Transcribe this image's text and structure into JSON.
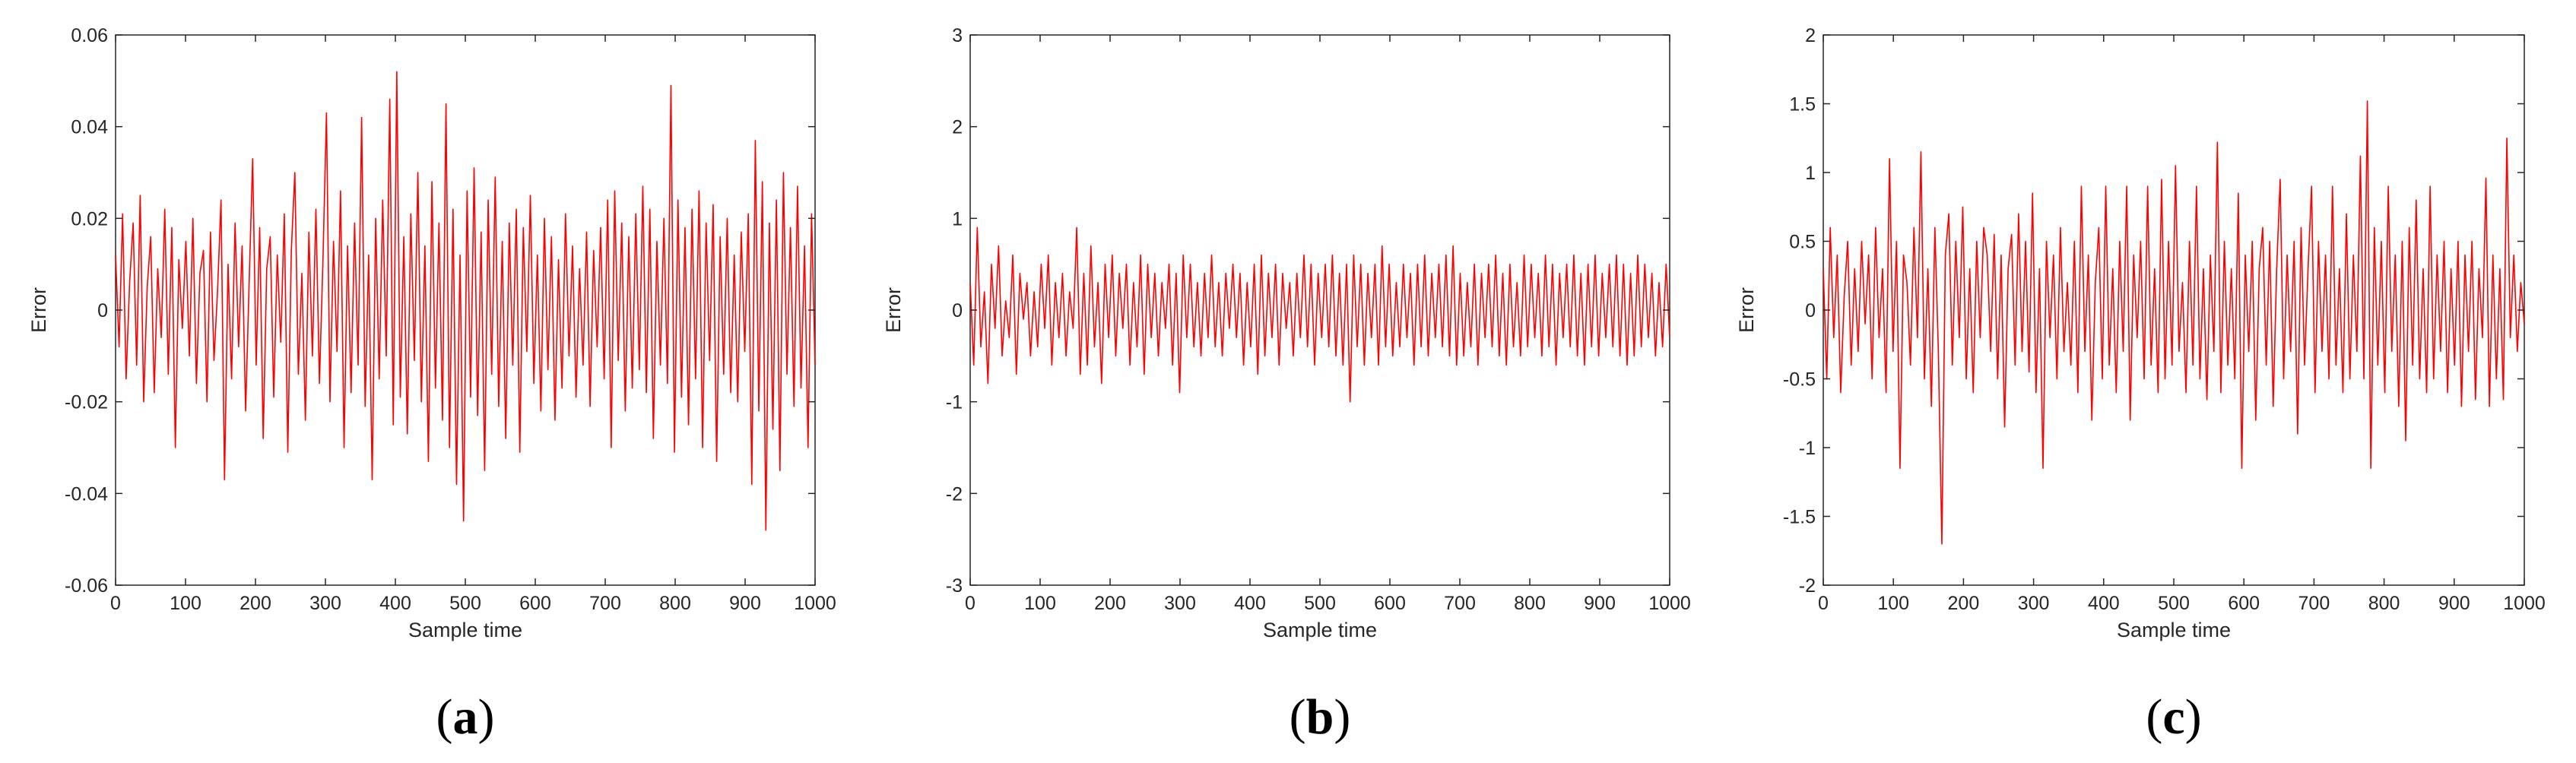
{
  "chart_data": [
    {
      "type": "line",
      "caption_open": "(",
      "caption_letter": "a",
      "caption_close": ")",
      "xlabel": "Sample time",
      "ylabel": "Error",
      "xlim": [
        0,
        1000
      ],
      "ylim": [
        -0.06,
        0.06
      ],
      "xticks": [
        0,
        100,
        200,
        300,
        400,
        500,
        600,
        700,
        800,
        900,
        1000
      ],
      "xtick_labels": [
        "0",
        "100",
        "200",
        "300",
        "400",
        "500",
        "600",
        "700",
        "800",
        "900",
        "1000"
      ],
      "yticks": [
        -0.06,
        -0.04,
        -0.02,
        0,
        0.02,
        0.04,
        0.06
      ],
      "ytick_labels": [
        "-0.06",
        "-0.04",
        "-0.02",
        "0",
        "0.02",
        "0.04",
        "0.06"
      ],
      "grid": false,
      "line_color": "#ff0000",
      "n_points": 1000,
      "series": [
        {
          "values": [
            0.012,
            -0.008,
            0.021,
            -0.015,
            0.006,
            0.019,
            -0.012,
            0.025,
            -0.02,
            0.005,
            0.016,
            -0.018,
            0.009,
            -0.006,
            0.022,
            -0.014,
            0.018,
            -0.03,
            0.011,
            -0.004,
            0.015,
            -0.01,
            0.02,
            -0.016,
            0.008,
            0.013,
            -0.02,
            0.017,
            -0.011,
            0.004,
            0.024,
            -0.037,
            0.01,
            -0.015,
            0.019,
            -0.008,
            0.014,
            -0.022,
            0.006,
            0.033,
            -0.012,
            0.018,
            -0.028,
            0.009,
            0.016,
            -0.019,
            0.012,
            -0.007,
            0.021,
            -0.031,
            0.013,
            0.03,
            -0.014,
            0.008,
            -0.024,
            0.017,
            -0.01,
            0.022,
            -0.016,
            0.011,
            0.043,
            -0.02,
            0.015,
            -0.009,
            0.026,
            -0.03,
            0.014,
            -0.018,
            0.019,
            -0.012,
            0.042,
            -0.021,
            0.012,
            -0.037,
            0.02,
            -0.015,
            0.024,
            -0.01,
            0.046,
            -0.025,
            0.052,
            -0.019,
            0.016,
            -0.027,
            0.021,
            -0.011,
            0.03,
            -0.02,
            0.014,
            -0.033,
            0.028,
            -0.017,
            0.019,
            -0.024,
            0.045,
            -0.03,
            0.022,
            -0.038,
            0.012,
            -0.046,
            0.026,
            -0.019,
            0.031,
            -0.023,
            0.017,
            -0.035,
            0.024,
            -0.014,
            0.029,
            -0.021,
            0.015,
            -0.028,
            0.019,
            -0.012,
            0.022,
            -0.031,
            0.018,
            -0.009,
            0.025,
            -0.016,
            0.012,
            -0.022,
            0.02,
            -0.013,
            0.016,
            -0.024,
            0.011,
            -0.017,
            0.021,
            -0.01,
            0.014,
            -0.019,
            0.009,
            -0.012,
            0.017,
            -0.021,
            0.013,
            -0.008,
            0.018,
            -0.015,
            0.024,
            -0.03,
            0.026,
            -0.011,
            0.019,
            -0.022,
            0.016,
            -0.017,
            0.021,
            -0.013,
            0.027,
            -0.018,
            0.022,
            -0.028,
            0.015,
            -0.012,
            0.02,
            -0.016,
            0.049,
            -0.031,
            0.024,
            -0.019,
            0.018,
            -0.025,
            0.022,
            -0.015,
            0.026,
            -0.03,
            0.019,
            -0.011,
            0.023,
            -0.033,
            0.016,
            -0.014,
            0.02,
            -0.018,
            0.012,
            -0.02,
            0.017,
            -0.009,
            0.021,
            -0.038,
            0.037,
            -0.022,
            0.028,
            -0.048,
            0.019,
            -0.026,
            0.024,
            -0.035,
            0.03,
            -0.014,
            0.018,
            -0.021,
            0.027,
            -0.017,
            0.014,
            -0.03,
            0.021,
            -0.012
          ]
        }
      ]
    },
    {
      "type": "line",
      "caption_open": "(",
      "caption_letter": "b",
      "caption_close": ")",
      "xlabel": "Sample time",
      "ylabel": "Error",
      "xlim": [
        0,
        1000
      ],
      "ylim": [
        -3,
        3
      ],
      "xticks": [
        0,
        100,
        200,
        300,
        400,
        500,
        600,
        700,
        800,
        900,
        1000
      ],
      "xtick_labels": [
        "0",
        "100",
        "200",
        "300",
        "400",
        "500",
        "600",
        "700",
        "800",
        "900",
        "1000"
      ],
      "yticks": [
        -3,
        -2,
        -1,
        0,
        1,
        2,
        3
      ],
      "ytick_labels": [
        "-3",
        "-2",
        "-1",
        "0",
        "1",
        "2",
        "3"
      ],
      "grid": false,
      "line_color": "#ff0000",
      "n_points": 1000,
      "series": [
        {
          "values": [
            0.3,
            -0.6,
            0.9,
            -0.4,
            0.2,
            -0.8,
            0.5,
            -0.2,
            0.7,
            -0.5,
            0.1,
            -0.3,
            0.6,
            -0.7,
            0.4,
            -0.1,
            0.3,
            -0.5,
            0.2,
            -0.4,
            0.5,
            -0.2,
            0.6,
            -0.6,
            0.3,
            -0.3,
            0.4,
            -0.5,
            0.2,
            -0.2,
            0.9,
            -0.7,
            0.4,
            -0.6,
            0.7,
            -0.4,
            0.3,
            -0.8,
            0.5,
            -0.3,
            0.6,
            -0.5,
            0.4,
            -0.2,
            0.5,
            -0.6,
            0.3,
            -0.4,
            0.6,
            -0.7,
            0.5,
            -0.3,
            0.4,
            -0.5,
            0.3,
            -0.2,
            0.5,
            -0.6,
            0.4,
            -0.9,
            0.6,
            -0.3,
            0.5,
            -0.4,
            0.3,
            -0.5,
            0.4,
            -0.3,
            0.6,
            -0.4,
            0.3,
            -0.5,
            0.4,
            -0.2,
            0.5,
            -0.3,
            0.4,
            -0.6,
            0.3,
            -0.4,
            0.5,
            -0.7,
            0.6,
            -0.5,
            0.4,
            -0.3,
            0.5,
            -0.6,
            0.4,
            -0.2,
            0.3,
            -0.5,
            0.4,
            -0.3,
            0.6,
            -0.4,
            0.5,
            -0.6,
            0.4,
            -0.3,
            0.5,
            -0.4,
            0.6,
            -0.5,
            0.4,
            -0.6,
            0.5,
            -1.0,
            0.6,
            -0.4,
            0.5,
            -0.6,
            0.4,
            -0.3,
            0.5,
            -0.6,
            0.7,
            -0.4,
            0.5,
            -0.5,
            0.3,
            -0.4,
            0.5,
            -0.3,
            0.4,
            -0.6,
            0.5,
            -0.4,
            0.6,
            -0.5,
            0.4,
            -0.3,
            0.5,
            -0.4,
            0.6,
            -0.5,
            0.7,
            -0.6,
            0.4,
            -0.5,
            0.3,
            -0.4,
            0.5,
            -0.6,
            0.4,
            -0.3,
            0.5,
            -0.4,
            0.6,
            -0.5,
            0.4,
            -0.6,
            0.5,
            -0.4,
            0.3,
            -0.5,
            0.6,
            -0.4,
            0.5,
            -0.3,
            0.4,
            -0.5,
            0.6,
            -0.4,
            0.5,
            -0.6,
            0.4,
            -0.3,
            0.5,
            -0.4,
            0.6,
            -0.5,
            0.4,
            -0.6,
            0.5,
            -0.4,
            0.6,
            -0.5,
            0.4,
            -0.3,
            0.5,
            -0.4,
            0.6,
            -0.5,
            0.5,
            -0.6,
            0.4,
            -0.5,
            0.6,
            -0.4,
            0.5,
            -0.3,
            0.4,
            -0.5,
            0.3,
            -0.4,
            0.5,
            -0.3
          ]
        }
      ]
    },
    {
      "type": "line",
      "caption_open": "(",
      "caption_letter": "c",
      "caption_close": ")",
      "xlabel": "Sample time",
      "ylabel": "Error",
      "xlim": [
        0,
        1000
      ],
      "ylim": [
        -2,
        2
      ],
      "xticks": [
        0,
        100,
        200,
        300,
        400,
        500,
        600,
        700,
        800,
        900,
        1000
      ],
      "xtick_labels": [
        "0",
        "100",
        "200",
        "300",
        "400",
        "500",
        "600",
        "700",
        "800",
        "900",
        "1000"
      ],
      "yticks": [
        -2,
        -1.5,
        -1,
        -0.5,
        0,
        0.5,
        1,
        1.5,
        2
      ],
      "ytick_labels": [
        "-2",
        "-1.5",
        "-1",
        "-0.5",
        "0",
        "0.5",
        "1",
        "1.5",
        "2"
      ],
      "grid": false,
      "line_color": "#ff0000",
      "n_points": 1000,
      "series": [
        {
          "values": [
            0.3,
            -0.5,
            0.6,
            -0.2,
            0.4,
            -0.6,
            0.1,
            0.5,
            -0.4,
            0.3,
            -0.3,
            0.5,
            -0.1,
            0.4,
            -0.5,
            0.6,
            -0.2,
            0.3,
            -0.6,
            1.1,
            -0.3,
            0.5,
            -1.15,
            0.4,
            0.2,
            -0.4,
            0.6,
            -0.2,
            1.15,
            -0.5,
            0.3,
            -0.7,
            0.6,
            -0.3,
            -1.7,
            0.4,
            0.7,
            -0.4,
            0.5,
            -0.2,
            0.75,
            -0.5,
            0.3,
            -0.6,
            0.5,
            -0.2,
            0.6,
            0.4,
            -0.3,
            0.55,
            -0.5,
            0.4,
            -0.85,
            0.3,
            0.55,
            -0.4,
            0.7,
            -0.3,
            0.5,
            -0.45,
            0.85,
            -0.6,
            0.3,
            -1.15,
            0.5,
            -0.2,
            0.4,
            -0.5,
            0.6,
            -0.3,
            0.2,
            -0.4,
            0.5,
            -0.6,
            0.9,
            -0.3,
            0.4,
            -0.8,
            0.2,
            0.6,
            -0.5,
            0.9,
            -0.4,
            0.3,
            -0.6,
            0.5,
            -0.3,
            0.9,
            -0.8,
            0.4,
            -0.2,
            0.5,
            -0.5,
            0.9,
            -0.4,
            0.3,
            -0.6,
            0.95,
            -0.5,
            0.5,
            -0.4,
            1.05,
            -0.3,
            0.2,
            -0.6,
            0.5,
            -0.4,
            0.9,
            -0.5,
            0.3,
            -0.65,
            0.4,
            -0.3,
            1.22,
            -0.6,
            0.5,
            -0.4,
            0.3,
            -0.5,
            0.85,
            -1.15,
            0.4,
            -0.3,
            0.5,
            -0.8,
            0.3,
            0.6,
            -0.4,
            0.5,
            -0.7,
            0.3,
            0.95,
            -0.5,
            0.4,
            -0.3,
            0.5,
            -0.9,
            0.6,
            -0.4,
            0.3,
            0.9,
            -0.6,
            0.5,
            -0.3,
            0.4,
            -0.5,
            0.9,
            -0.4,
            0.3,
            -0.6,
            0.7,
            -0.5,
            0.4,
            -0.3,
            1.12,
            -0.5,
            1.52,
            -1.15,
            0.6,
            -0.4,
            0.5,
            -0.6,
            0.9,
            -0.3,
            0.4,
            -0.7,
            0.5,
            -0.95,
            0.6,
            -0.4,
            0.8,
            -0.5,
            0.3,
            -0.6,
            0.9,
            -0.5,
            0.4,
            -0.3,
            0.5,
            -0.6,
            0.3,
            -0.4,
            0.5,
            -0.7,
            0.4,
            -0.3,
            0.5,
            -0.65,
            0.3,
            -0.2,
            0.96,
            -0.7,
            0.4,
            -0.5,
            0.3,
            -0.65,
            1.25,
            -0.2,
            0.4,
            -0.3,
            0.2,
            -0.1
          ]
        }
      ]
    }
  ]
}
